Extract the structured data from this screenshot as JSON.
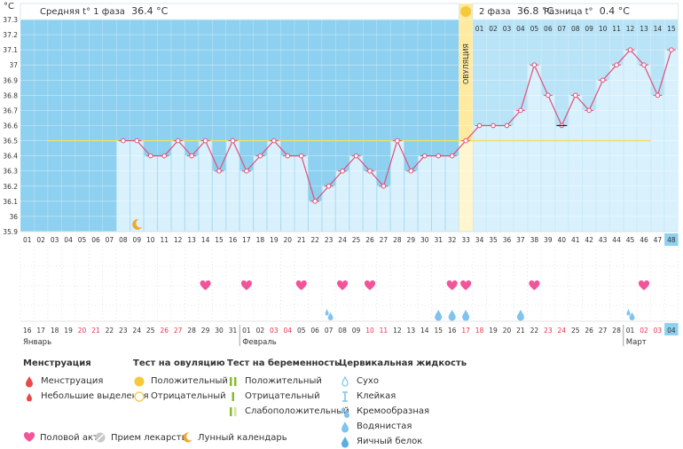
{
  "unit_label": "°C",
  "header": {
    "phase1_label": "Средняя t° 1 фаза",
    "phase1_value": "36.4 °C",
    "phase2_label": "2 фаза",
    "phase2_value": "36.8 °C",
    "diff_label": "Разница t°",
    "diff_value": "0.4 °C",
    "ovulation_label": "ОВУЛЯЦИЯ"
  },
  "colors": {
    "phase1_bg": "#8ed0ef",
    "phase2_bg": "#b9e3f6",
    "ovulation": "#ffeaa0",
    "line": "#e0507a",
    "coverline": "#f0e060",
    "heart": "#f2549a",
    "drop": "#7fc3ee"
  },
  "chart_data": {
    "type": "line",
    "title": "",
    "ylabel": "°C",
    "ylim": [
      35.9,
      37.3
    ],
    "yticks": [
      35.9,
      36,
      36.1,
      36.2,
      36.3,
      36.4,
      36.5,
      36.6,
      36.7,
      36.8,
      36.9,
      37,
      37.1,
      37.2,
      37.3
    ],
    "cycle_days": [
      "01",
      "02",
      "03",
      "04",
      "05",
      "06",
      "07",
      "08",
      "09",
      "10",
      "11",
      "12",
      "13",
      "14",
      "15",
      "16",
      "17",
      "18",
      "19",
      "20",
      "21",
      "22",
      "23",
      "24",
      "25",
      "26",
      "27",
      "28",
      "29",
      "30",
      "31",
      "32",
      "33",
      "34",
      "35",
      "36",
      "37",
      "38",
      "39",
      "40",
      "41",
      "42",
      "43",
      "44",
      "45",
      "46",
      "47",
      "48"
    ],
    "temperatures": [
      null,
      null,
      null,
      null,
      null,
      null,
      null,
      36.5,
      36.5,
      36.4,
      36.4,
      36.5,
      36.4,
      36.5,
      36.3,
      36.5,
      36.3,
      36.4,
      36.5,
      36.4,
      36.4,
      36.1,
      36.2,
      36.3,
      36.4,
      36.3,
      36.2,
      36.5,
      36.3,
      36.4,
      36.4,
      36.4,
      36.5,
      36.6,
      36.6,
      36.6,
      36.7,
      37.0,
      36.8,
      36.6,
      36.8,
      36.7,
      36.9,
      37.0,
      37.1,
      37.0,
      36.8,
      37.1
    ],
    "coverline": 36.5,
    "ovulation_day": "33",
    "post_ovulation_days": [
      "01",
      "02",
      "03",
      "04",
      "05",
      "06",
      "07",
      "08",
      "09",
      "10",
      "11",
      "12",
      "13",
      "14",
      "15"
    ],
    "calendar_dates": [
      "16",
      "17",
      "18",
      "19",
      "20",
      "21",
      "22",
      "23",
      "24",
      "25",
      "26",
      "27",
      "28",
      "29",
      "30",
      "31",
      "01",
      "02",
      "03",
      "04",
      "05",
      "06",
      "07",
      "08",
      "09",
      "10",
      "11",
      "12",
      "13",
      "14",
      "15",
      "16",
      "17",
      "18",
      "19",
      "20",
      "21",
      "22",
      "23",
      "24",
      "25",
      "26",
      "27",
      "28",
      "01",
      "02",
      "03",
      "04"
    ],
    "weekend_dates": [
      false,
      false,
      false,
      false,
      true,
      true,
      false,
      false,
      false,
      false,
      true,
      true,
      false,
      false,
      false,
      false,
      false,
      false,
      true,
      true,
      false,
      false,
      false,
      false,
      false,
      true,
      true,
      false,
      false,
      false,
      false,
      false,
      true,
      true,
      false,
      false,
      false,
      false,
      true,
      true,
      false,
      false,
      false,
      false,
      false,
      true,
      true,
      false
    ],
    "months": [
      {
        "label": "Январь",
        "start_index": 0
      },
      {
        "label": "Февраль",
        "start_index": 16
      },
      {
        "label": "Март",
        "start_index": 44
      }
    ],
    "intercourse_days": [
      "14",
      "17",
      "21",
      "24",
      "26",
      "32",
      "33",
      "38",
      "46"
    ],
    "fluid_days": [
      {
        "day": "23",
        "type": "creamy"
      },
      {
        "day": "31",
        "type": "watery"
      },
      {
        "day": "32",
        "type": "watery"
      },
      {
        "day": "33",
        "type": "watery"
      },
      {
        "day": "37",
        "type": "watery"
      },
      {
        "day": "45",
        "type": "creamy"
      }
    ],
    "moon_day": "09",
    "ovulation_test_positive_day": "33",
    "highlighted_day": "48"
  },
  "legend": {
    "menstruation": {
      "title": "Менструация",
      "items": [
        "Менструация",
        "Небольшие выделения"
      ]
    },
    "ovulation_test": {
      "title": "Тест на овуляцию",
      "items": [
        "Положительный",
        "Отрицательный"
      ]
    },
    "pregnancy_test": {
      "title": "Тест на беременность",
      "items": [
        "Положительный",
        "Отрицательный",
        "Слабоположительный"
      ]
    },
    "cervical_fluid": {
      "title": "Цервикальная жидкость",
      "items": [
        "Сухо",
        "Клейкая",
        "Кремообразная",
        "Водянистая",
        "Яичный белок"
      ]
    },
    "bottom": {
      "intercourse": "Половой акт",
      "medication": "Прием лекарств",
      "lunar": "Лунный календарь"
    }
  }
}
